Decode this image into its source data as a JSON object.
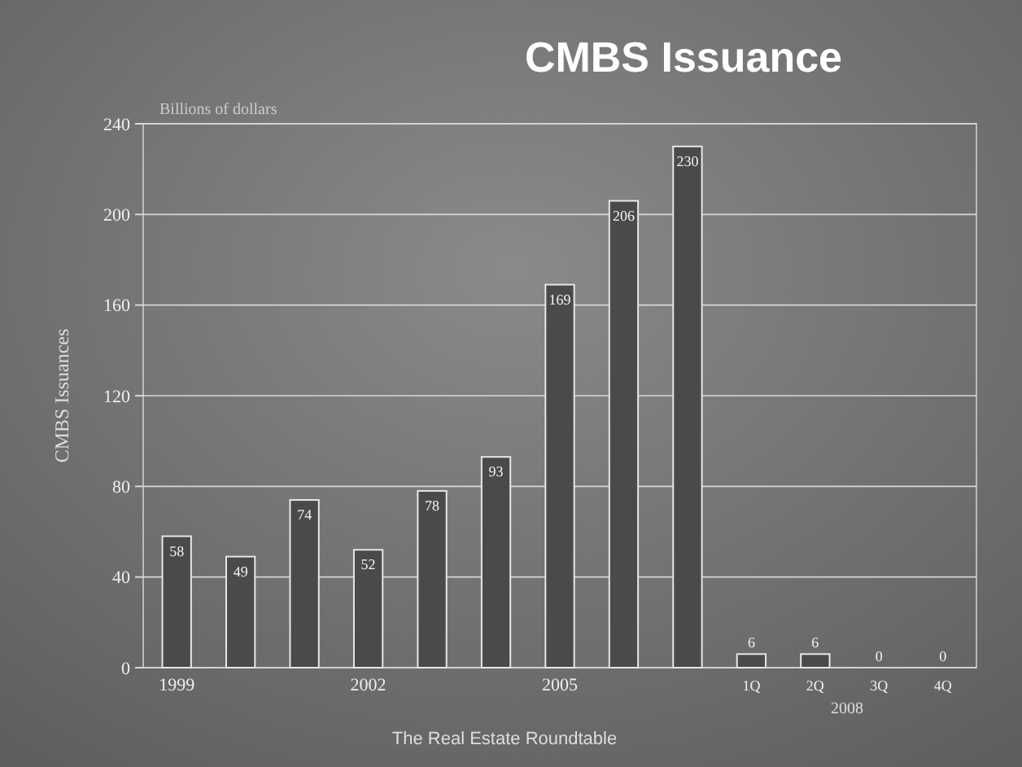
{
  "chart_data": {
    "type": "bar",
    "title": "CMBS Issuance",
    "ylabel": "CMBS Issuances",
    "annotations": [
      "Billions of dollars",
      "2008",
      "The Real Estate Roundtable"
    ],
    "categories": [
      "1999",
      null,
      null,
      "2002",
      null,
      null,
      "2005",
      null,
      null,
      "1Q",
      "2Q",
      "3Q",
      "4Q"
    ],
    "values": [
      58,
      49,
      74,
      52,
      78,
      93,
      169,
      206,
      230,
      6,
      6,
      0,
      0
    ],
    "color": "#4a4a4a",
    "ylim": [
      0,
      240
    ],
    "yticks": [
      0,
      40,
      80,
      120,
      160,
      200,
      240
    ],
    "grid": "y",
    "data_labels": true
  }
}
